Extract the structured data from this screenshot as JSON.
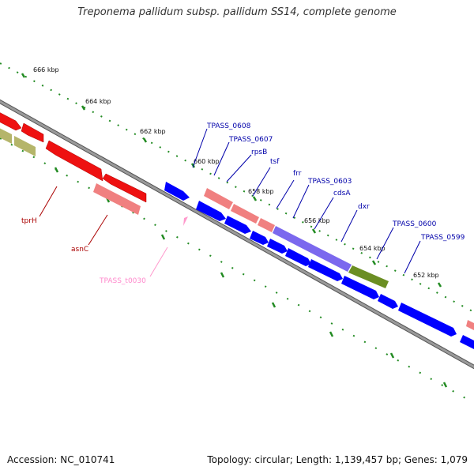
{
  "title": "Treponema pallidum subsp. pallidum SS14, complete genome",
  "footer": {
    "accession": "Accession: NC_010741",
    "summary": "Topology: circular; Length: 1,139,457 bp; Genes: 1,079"
  },
  "colors": {
    "forward_cds": "#0000ff",
    "reverse_cds": "#ff0000",
    "rna": "#f08080",
    "other": "#b5b56a",
    "highlight": "#7b68ee",
    "tick": "#228b22",
    "backbone": "#888888"
  },
  "scale_ticks": [
    {
      "label": "666 kbp"
    },
    {
      "label": "664 kbp"
    },
    {
      "label": "662 kbp"
    },
    {
      "label": "660 kbp"
    },
    {
      "label": "658 kbp"
    },
    {
      "label": "656 kbp"
    },
    {
      "label": "654 kbp"
    },
    {
      "label": "652 kbp"
    }
  ],
  "gene_labels": [
    {
      "name": "TPASS_0608",
      "color": "#0000aa"
    },
    {
      "name": "TPASS_0607",
      "color": "#0000aa"
    },
    {
      "name": "rpsB",
      "color": "#0000aa"
    },
    {
      "name": "tsf",
      "color": "#0000aa"
    },
    {
      "name": "frr",
      "color": "#0000aa"
    },
    {
      "name": "TPASS_0603",
      "color": "#0000aa"
    },
    {
      "name": "cdsA",
      "color": "#0000aa"
    },
    {
      "name": "dxr",
      "color": "#0000aa"
    },
    {
      "name": "TPASS_0600",
      "color": "#0000aa"
    },
    {
      "name": "TPASS_0599",
      "color": "#0000aa"
    },
    {
      "name": "tprH",
      "color": "#aa0000"
    },
    {
      "name": "asnC",
      "color": "#aa0000"
    },
    {
      "name": "TPASS_t0030",
      "color": "#ff88cc"
    }
  ]
}
